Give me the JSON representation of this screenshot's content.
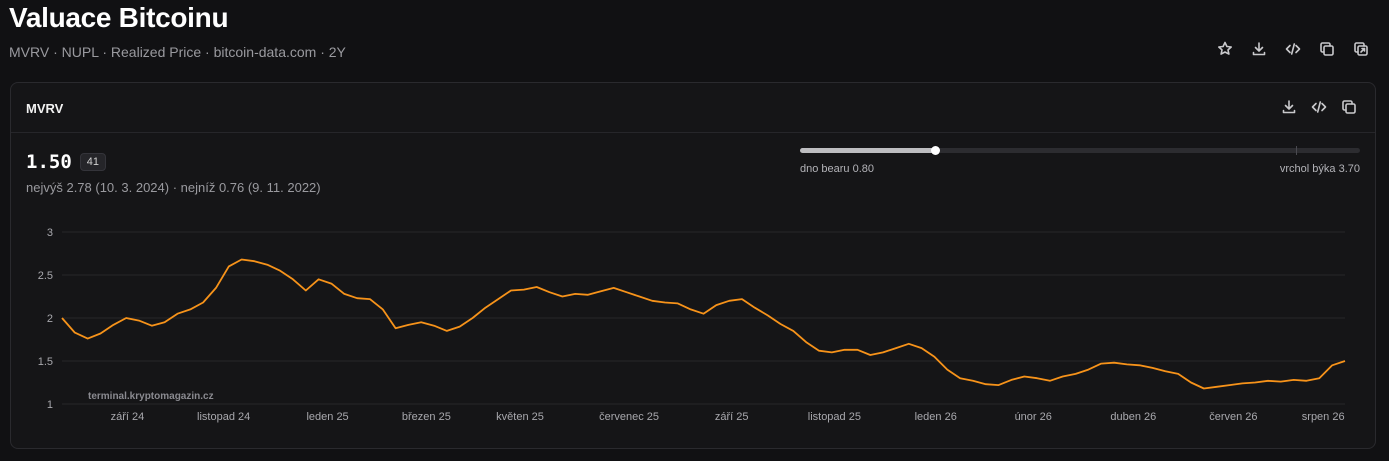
{
  "page": {
    "title": "Valuace Bitcoinu",
    "subtitle": "MVRV · NUPL · Realized Price · bitcoin-data.com · 2Y",
    "actions": [
      "star-icon",
      "download-icon",
      "code-icon",
      "copy-icon",
      "open-external-icon"
    ]
  },
  "card": {
    "title": "MVRV",
    "actions": [
      "download-icon",
      "code-icon",
      "copy-icon"
    ],
    "value": "1.50",
    "badge": "41",
    "stats": "nejvýš 2.78 (10. 3. 2024) · nejníž 0.76 (9. 11. 2022)",
    "gauge": {
      "min_label": "dno bearu 0.80",
      "max_label": "vrchol býka 3.70",
      "min": 0.8,
      "max": 3.7,
      "value": 1.5,
      "tick_value": 3.37
    },
    "watermark": "terminal.kryptomagazin.cz"
  },
  "chart_data": {
    "type": "line",
    "title": "",
    "xlabel": "",
    "ylabel": "",
    "ylim": [
      1,
      3
    ],
    "yticks": [
      "1",
      "1.5",
      "2",
      "2.5",
      "3"
    ],
    "x_tick_labels": [
      "září 24",
      "listopad 24",
      "leden 25",
      "březen 25",
      "květen 25",
      "červenec 25",
      "září 25",
      "listopad 25",
      "leden 26",
      "únor 26",
      "duben 26",
      "červen 26",
      "srpen 26"
    ],
    "x_tick_positions": [
      0.051,
      0.126,
      0.207,
      0.284,
      0.357,
      0.442,
      0.522,
      0.602,
      0.681,
      0.757,
      0.835,
      0.913,
      0.983
    ],
    "grid": true,
    "color": "#f7931a",
    "x": [
      0,
      0.01,
      0.02,
      0.03,
      0.04,
      0.05,
      0.06,
      0.07,
      0.08,
      0.09,
      0.1,
      0.11,
      0.12,
      0.13,
      0.14,
      0.15,
      0.16,
      0.17,
      0.18,
      0.19,
      0.2,
      0.21,
      0.22,
      0.23,
      0.24,
      0.25,
      0.26,
      0.27,
      0.28,
      0.29,
      0.3,
      0.31,
      0.32,
      0.33,
      0.34,
      0.35,
      0.36,
      0.37,
      0.38,
      0.39,
      0.4,
      0.41,
      0.42,
      0.43,
      0.44,
      0.45,
      0.46,
      0.47,
      0.48,
      0.49,
      0.5,
      0.51,
      0.52,
      0.53,
      0.54,
      0.55,
      0.56,
      0.57,
      0.58,
      0.59,
      0.6,
      0.61,
      0.62,
      0.63,
      0.64,
      0.65,
      0.66,
      0.67,
      0.68,
      0.69,
      0.7,
      0.71,
      0.72,
      0.73,
      0.74,
      0.75,
      0.76,
      0.77,
      0.78,
      0.79,
      0.8,
      0.81,
      0.82,
      0.83,
      0.84,
      0.85,
      0.86,
      0.87,
      0.88,
      0.89,
      0.9,
      0.91,
      0.92,
      0.93,
      0.94,
      0.95,
      0.96,
      0.97,
      0.98,
      0.99,
      1.0
    ],
    "values": [
      2.0,
      1.83,
      1.76,
      1.82,
      1.92,
      2.0,
      1.97,
      1.91,
      1.95,
      2.05,
      2.1,
      2.18,
      2.35,
      2.6,
      2.68,
      2.66,
      2.62,
      2.55,
      2.45,
      2.32,
      2.45,
      2.4,
      2.28,
      2.23,
      2.22,
      2.1,
      1.88,
      1.92,
      1.95,
      1.91,
      1.85,
      1.9,
      2.0,
      2.12,
      2.22,
      2.32,
      2.33,
      2.36,
      2.3,
      2.25,
      2.28,
      2.27,
      2.31,
      2.35,
      2.3,
      2.25,
      2.2,
      2.18,
      2.17,
      2.1,
      2.05,
      2.15,
      2.2,
      2.22,
      2.12,
      2.03,
      1.93,
      1.85,
      1.72,
      1.62,
      1.6,
      1.63,
      1.63,
      1.57,
      1.6,
      1.65,
      1.7,
      1.65,
      1.55,
      1.4,
      1.3,
      1.27,
      1.23,
      1.22,
      1.28,
      1.32,
      1.3,
      1.27,
      1.32,
      1.35,
      1.4,
      1.47,
      1.48,
      1.46,
      1.45,
      1.42,
      1.38,
      1.35,
      1.25,
      1.18,
      1.2,
      1.22,
      1.24,
      1.25,
      1.27,
      1.26,
      1.28,
      1.27,
      1.3,
      1.45,
      1.5
    ]
  }
}
